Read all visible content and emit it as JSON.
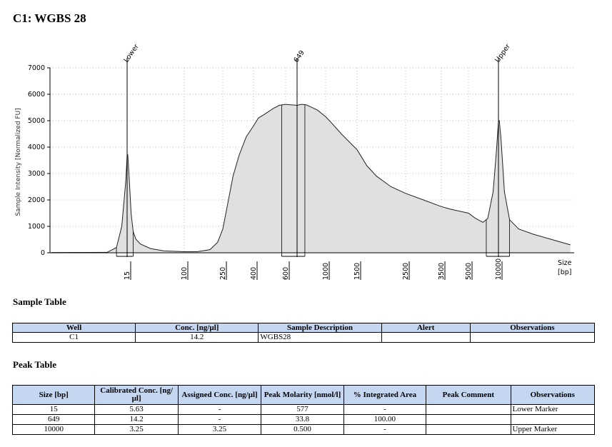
{
  "title": "C1: WGBS 28",
  "chart_data": {
    "type": "line",
    "ylabel": "Sample Intensity [Normalized FU]",
    "xlabel_line1": "Size",
    "xlabel_line2": "[bp]",
    "ylim": [
      0,
      7000
    ],
    "y_ticks": [
      "0",
      "1000",
      "2000",
      "3000",
      "4000",
      "5000",
      "6000",
      "7000"
    ],
    "x_ticks": [
      "15",
      "100",
      "250",
      "400",
      "600",
      "1000",
      "1500",
      "2500",
      "3500",
      "5000",
      "10000"
    ],
    "grid": true,
    "fill_color": "#e0e0e0",
    "peaks": [
      {
        "label": "Lower",
        "size": 15
      },
      {
        "label": "649",
        "size": 649
      },
      {
        "label": "Upper",
        "size": 10000
      }
    ],
    "trace": [
      [
        -20,
        10
      ],
      [
        0,
        15
      ],
      [
        7,
        200
      ],
      [
        11,
        1000
      ],
      [
        14,
        2700
      ],
      [
        15,
        3650
      ],
      [
        16,
        3700
      ],
      [
        17,
        3300
      ],
      [
        19,
        2400
      ],
      [
        21,
        1500
      ],
      [
        24,
        800
      ],
      [
        28,
        520
      ],
      [
        35,
        330
      ],
      [
        50,
        160
      ],
      [
        70,
        70
      ],
      [
        100,
        40
      ],
      [
        150,
        40
      ],
      [
        200,
        120
      ],
      [
        230,
        400
      ],
      [
        250,
        900
      ],
      [
        275,
        1900
      ],
      [
        300,
        2900
      ],
      [
        330,
        3700
      ],
      [
        365,
        4400
      ],
      [
        400,
        4800
      ],
      [
        430,
        5100
      ],
      [
        470,
        5250
      ],
      [
        520,
        5450
      ],
      [
        560,
        5580
      ],
      [
        600,
        5620
      ],
      [
        649,
        5580
      ],
      [
        700,
        5620
      ],
      [
        760,
        5600
      ],
      [
        820,
        5520
      ],
      [
        900,
        5400
      ],
      [
        1000,
        5150
      ],
      [
        1100,
        4900
      ],
      [
        1250,
        4500
      ],
      [
        1500,
        3900
      ],
      [
        1700,
        3300
      ],
      [
        1900,
        2900
      ],
      [
        2200,
        2500
      ],
      [
        2500,
        2250
      ],
      [
        3000,
        2000
      ],
      [
        3500,
        1750
      ],
      [
        4000,
        1650
      ],
      [
        5000,
        1500
      ],
      [
        6500,
        1300
      ],
      [
        8000,
        1150
      ],
      [
        9000,
        1300
      ],
      [
        9500,
        2300
      ],
      [
        9800,
        3800
      ],
      [
        10000,
        4950
      ],
      [
        10100,
        5000
      ],
      [
        10300,
        4300
      ],
      [
        10700,
        2300
      ],
      [
        11300,
        1250
      ],
      [
        12500,
        900
      ],
      [
        14500,
        700
      ],
      [
        17000,
        500
      ],
      [
        19500,
        300
      ]
    ]
  },
  "sample_table": {
    "heading": "Sample Table",
    "columns": [
      "Well",
      "Conc. [ng/µl]",
      "Sample Description",
      "Alert",
      "Observations"
    ],
    "rows": [
      [
        "C1",
        "14.2",
        "WGBS28",
        "",
        ""
      ]
    ]
  },
  "peak_table": {
    "heading": "Peak Table",
    "columns": [
      "Size [bp]",
      "Calibrated Conc. [ng/µl]",
      "Assigned Conc. [ng/µl]",
      "Peak Molarity [nmol/l]",
      "% Integrated Area",
      "Peak Comment",
      "Observations"
    ],
    "rows": [
      [
        "15",
        "5.63",
        "-",
        "577",
        "-",
        "",
        "Lower Marker"
      ],
      [
        "649",
        "14.2",
        "-",
        "33.8",
        "100.00",
        "",
        ""
      ],
      [
        "10000",
        "3.25",
        "3.25",
        "0.500",
        "-",
        "",
        "Upper Marker"
      ]
    ]
  }
}
